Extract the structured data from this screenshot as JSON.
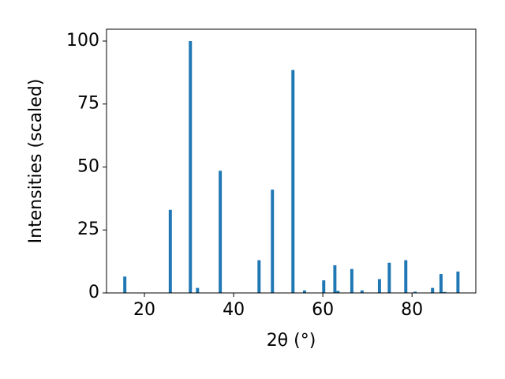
{
  "chart_data": {
    "type": "bar",
    "x_label": "2θ (°)",
    "y_label": "Intensities (scaled)",
    "x": [
      15.6,
      25.8,
      30.3,
      31.9,
      37.0,
      45.7,
      48.7,
      53.3,
      55.9,
      60.2,
      62.7,
      63.4,
      66.5,
      68.8,
      72.7,
      74.9,
      78.6,
      80.7,
      84.6,
      86.5,
      87.3,
      90.3
    ],
    "values": [
      6.5,
      33,
      100,
      2,
      48.5,
      13,
      41,
      88.5,
      1,
      5,
      11,
      0.8,
      9.5,
      1,
      5.5,
      12,
      13,
      0.5,
      2,
      7.5,
      0.4,
      8.5
    ],
    "color": "#1f77b4",
    "xlim": [
      11.5,
      94.3
    ],
    "xticks": [
      20,
      40,
      60,
      80
    ],
    "ylim": [
      0,
      104.7
    ],
    "yticks": [
      0,
      25,
      50,
      75,
      100
    ],
    "grid": false
  }
}
